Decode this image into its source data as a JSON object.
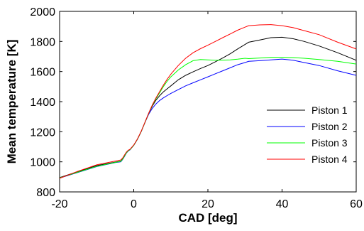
{
  "chart_data": {
    "type": "line",
    "title": "",
    "xlabel": "CAD [deg]",
    "ylabel": "Mean temperature [K]",
    "xlim": [
      -20,
      60
    ],
    "ylim": [
      800,
      2000
    ],
    "xticks": [
      -20,
      0,
      20,
      40,
      60
    ],
    "yticks": [
      800,
      1000,
      1200,
      1400,
      1600,
      1800,
      2000
    ],
    "xtick_labels": [
      "-20",
      "0",
      "20",
      "40",
      "60"
    ],
    "ytick_labels": [
      "800",
      "1000",
      "1200",
      "1400",
      "1600",
      "1800",
      "2000"
    ],
    "grid": false,
    "legend_position": "center-right",
    "series": [
      {
        "name": "Piston 1",
        "color": "#000000",
        "x": [
          -20,
          -15,
          -10,
          -5,
          -3.5,
          -3,
          -2.5,
          -2,
          -1.5,
          -1,
          0,
          1,
          2,
          3,
          4,
          5,
          6,
          7,
          8,
          9,
          10,
          12,
          14,
          16,
          18,
          20,
          22,
          24,
          26,
          28,
          30,
          31,
          34,
          37,
          40,
          43,
          46,
          50,
          55,
          60
        ],
        "y": [
          895,
          935,
          975,
          998,
          1005,
          1020,
          1040,
          1062,
          1075,
          1082,
          1110,
          1150,
          1200,
          1260,
          1320,
          1370,
          1410,
          1440,
          1465,
          1485,
          1505,
          1545,
          1575,
          1598,
          1620,
          1640,
          1665,
          1690,
          1718,
          1750,
          1780,
          1795,
          1810,
          1825,
          1828,
          1818,
          1800,
          1770,
          1725,
          1675
        ]
      },
      {
        "name": "Piston 2",
        "color": "#0000ff",
        "x": [
          -20,
          -15,
          -10,
          -5,
          -3.5,
          -3,
          -2.5,
          -2,
          -1.5,
          -1,
          0,
          1,
          2,
          3,
          4,
          5,
          6,
          7,
          8,
          9,
          10,
          12,
          14,
          16,
          18,
          20,
          22,
          24,
          26,
          28,
          30,
          31,
          34,
          37,
          40,
          43,
          46,
          50,
          55,
          60
        ],
        "y": [
          892,
          930,
          968,
          995,
          1000,
          1015,
          1035,
          1058,
          1072,
          1080,
          1110,
          1150,
          1200,
          1260,
          1315,
          1355,
          1385,
          1408,
          1425,
          1440,
          1455,
          1480,
          1505,
          1525,
          1545,
          1565,
          1585,
          1605,
          1625,
          1645,
          1660,
          1668,
          1672,
          1678,
          1683,
          1675,
          1660,
          1640,
          1605,
          1575
        ]
      },
      {
        "name": "Piston 3",
        "color": "#00ff00",
        "x": [
          -20,
          -15,
          -10,
          -5,
          -3.5,
          -3,
          -2.5,
          -2,
          -1.5,
          -1,
          0,
          1,
          2,
          3,
          4,
          5,
          6,
          7,
          8,
          9,
          10,
          12,
          14,
          16,
          18,
          20,
          22,
          24,
          26,
          28,
          30,
          31,
          34,
          37,
          40,
          43,
          46,
          50,
          55,
          60
        ],
        "y": [
          893,
          932,
          970,
          996,
          1003,
          1018,
          1038,
          1060,
          1074,
          1081,
          1110,
          1150,
          1200,
          1260,
          1320,
          1375,
          1420,
          1460,
          1500,
          1535,
          1565,
          1610,
          1645,
          1672,
          1680,
          1678,
          1675,
          1676,
          1678,
          1682,
          1688,
          1686,
          1690,
          1695,
          1695,
          1693,
          1688,
          1680,
          1668,
          1650
        ]
      },
      {
        "name": "Piston 4",
        "color": "#ff0000",
        "x": [
          -20,
          -15,
          -10,
          -5,
          -3.5,
          -3,
          -2.5,
          -2,
          -1.5,
          -1,
          0,
          1,
          2,
          3,
          4,
          5,
          6,
          7,
          8,
          9,
          10,
          12,
          14,
          16,
          18,
          20,
          22,
          24,
          26,
          28,
          30,
          31,
          34,
          37,
          40,
          43,
          46,
          50,
          55,
          60
        ],
        "y": [
          890,
          938,
          980,
          1005,
          1012,
          1025,
          1045,
          1065,
          1077,
          1084,
          1112,
          1152,
          1202,
          1262,
          1322,
          1378,
          1425,
          1468,
          1510,
          1548,
          1583,
          1640,
          1688,
          1725,
          1752,
          1775,
          1800,
          1825,
          1850,
          1875,
          1895,
          1905,
          1910,
          1912,
          1905,
          1892,
          1872,
          1845,
          1795,
          1750
        ]
      }
    ]
  }
}
